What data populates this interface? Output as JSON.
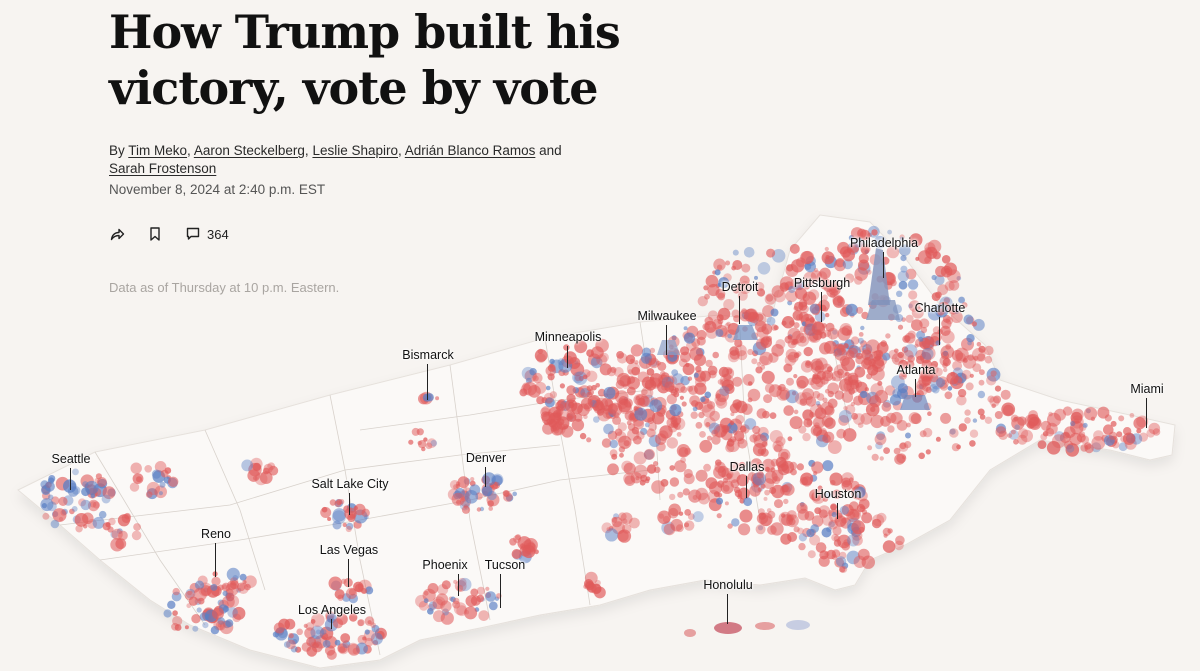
{
  "article": {
    "headline": "How Trump built his victory, vote by vote",
    "byline": {
      "prefix": "By",
      "authors": [
        "Tim Meko",
        "Aaron Steckelberg",
        "Leslie Shapiro",
        "Adrián Blanco Ramos",
        "Sarah Frostenson"
      ],
      "separator": ",",
      "conjunction": "and"
    },
    "dateline": "November 8, 2024 at 2:40 p.m. EST",
    "actions": {
      "share_icon": "share-icon",
      "bookmark_icon": "bookmark-icon",
      "comment_icon": "comment-icon",
      "comment_count": "364"
    },
    "data_note": "Data as of Thursday at 10 p.m. Eastern."
  },
  "map": {
    "colors": {
      "republican": "#e05a5a",
      "democrat": "#5a7fc4",
      "land": "#fbf9f7",
      "borders": "#cfcac5",
      "background": "#f7f4f1"
    },
    "cities": [
      {
        "name": "Philadelphia"
      },
      {
        "name": "Pittsburgh"
      },
      {
        "name": "Detroit"
      },
      {
        "name": "Charlotte"
      },
      {
        "name": "Milwaukee"
      },
      {
        "name": "Minneapolis"
      },
      {
        "name": "Bismarck"
      },
      {
        "name": "Atlanta"
      },
      {
        "name": "Miami"
      },
      {
        "name": "Seattle"
      },
      {
        "name": "Denver"
      },
      {
        "name": "Salt Lake City"
      },
      {
        "name": "Dallas"
      },
      {
        "name": "Houston"
      },
      {
        "name": "Reno"
      },
      {
        "name": "Las Vegas"
      },
      {
        "name": "Phoenix"
      },
      {
        "name": "Tucson"
      },
      {
        "name": "Honolulu"
      },
      {
        "name": "Los Angeles"
      }
    ]
  }
}
